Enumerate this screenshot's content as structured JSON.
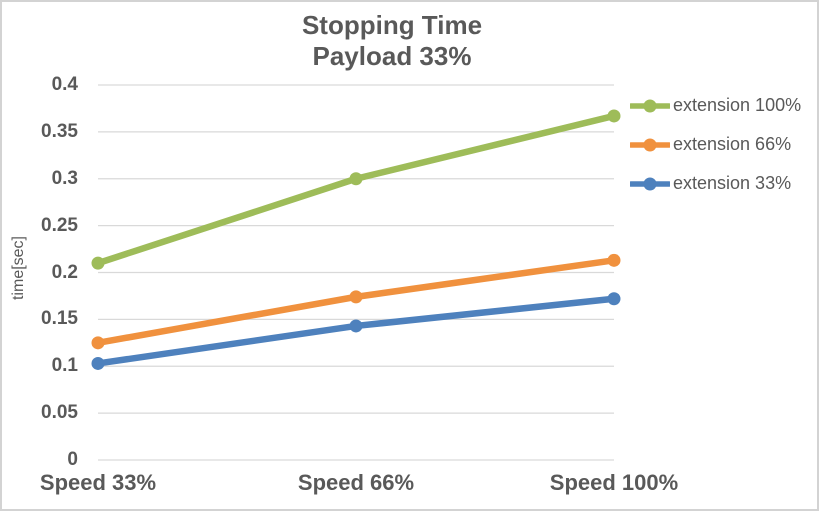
{
  "title": {
    "line1": "Stopping Time",
    "line2": "Payload 33%"
  },
  "axes": {
    "y_title": "time[sec]",
    "y_ticks": [
      "0",
      "0.05",
      "0.1",
      "0.15",
      "0.2",
      "0.25",
      "0.3",
      "0.35",
      "0.4"
    ],
    "x_categories": [
      "Speed 33%",
      "Speed 66%",
      "Speed 100%"
    ]
  },
  "colors": {
    "text": "#595959",
    "gridline": "#d9d9d9",
    "green": "#9ebc59",
    "orange": "#f0913e",
    "blue": "#4e81bd"
  },
  "chart_data": {
    "type": "line",
    "title": "Stopping Time Payload 33%",
    "categories": [
      "Speed 33%",
      "Speed 66%",
      "Speed 100%"
    ],
    "series": [
      {
        "name": "extension 100%",
        "color": "#9ebc59",
        "values": [
          0.21,
          0.3,
          0.367
        ]
      },
      {
        "name": "extension 66%",
        "color": "#f0913e",
        "values": [
          0.125,
          0.174,
          0.213
        ]
      },
      {
        "name": "extension 33%",
        "color": "#4e81bd",
        "values": [
          0.103,
          0.143,
          0.172
        ]
      }
    ],
    "xlabel": "",
    "ylabel": "time[sec]",
    "ylim": [
      0,
      0.4
    ],
    "ytick_step": 0.05,
    "grid": true,
    "legend_position": "right",
    "marker": "circle"
  }
}
